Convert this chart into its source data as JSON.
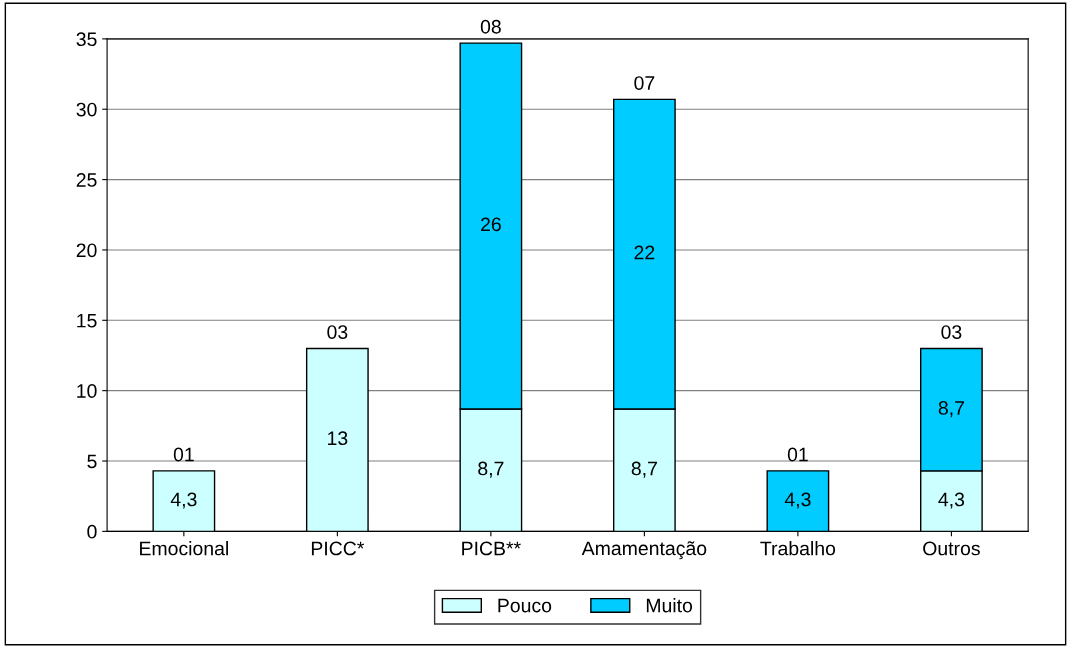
{
  "chart_data": {
    "type": "bar",
    "stacked": true,
    "categories": [
      "Emocional",
      "PICC*",
      "PICB**",
      "Amamentação",
      "Trabalho",
      "Outros"
    ],
    "series": [
      {
        "name": "Pouco",
        "color": "#ccffff",
        "values": [
          4.3,
          13,
          8.7,
          8.7,
          null,
          4.3
        ],
        "value_labels": [
          "4,3",
          "13",
          "8,7",
          "8,7",
          null,
          "4,3"
        ]
      },
      {
        "name": "Muito",
        "color": "#00ccff",
        "values": [
          null,
          null,
          26,
          22,
          4.3,
          8.7
        ],
        "value_labels": [
          null,
          null,
          "26",
          "22",
          "4,3",
          "8,7"
        ]
      }
    ],
    "annotations": [
      {
        "text": "01",
        "x": "Emocional",
        "y": 4.3
      },
      {
        "text": "03",
        "x": "PICC*",
        "y": 13
      },
      {
        "text": "08",
        "x": "PICB**",
        "y": 34.7
      },
      {
        "text": "07",
        "x": "Amamentação",
        "y": 30.7
      },
      {
        "text": "01",
        "x": "Trabalho",
        "y": 4.3
      },
      {
        "text": "03",
        "x": "Outros",
        "y": 13
      }
    ],
    "ylim": [
      0,
      35
    ],
    "yticks": [
      0,
      5,
      10,
      15,
      20,
      25,
      30,
      35
    ],
    "grid": "y",
    "legend": "bottom"
  }
}
